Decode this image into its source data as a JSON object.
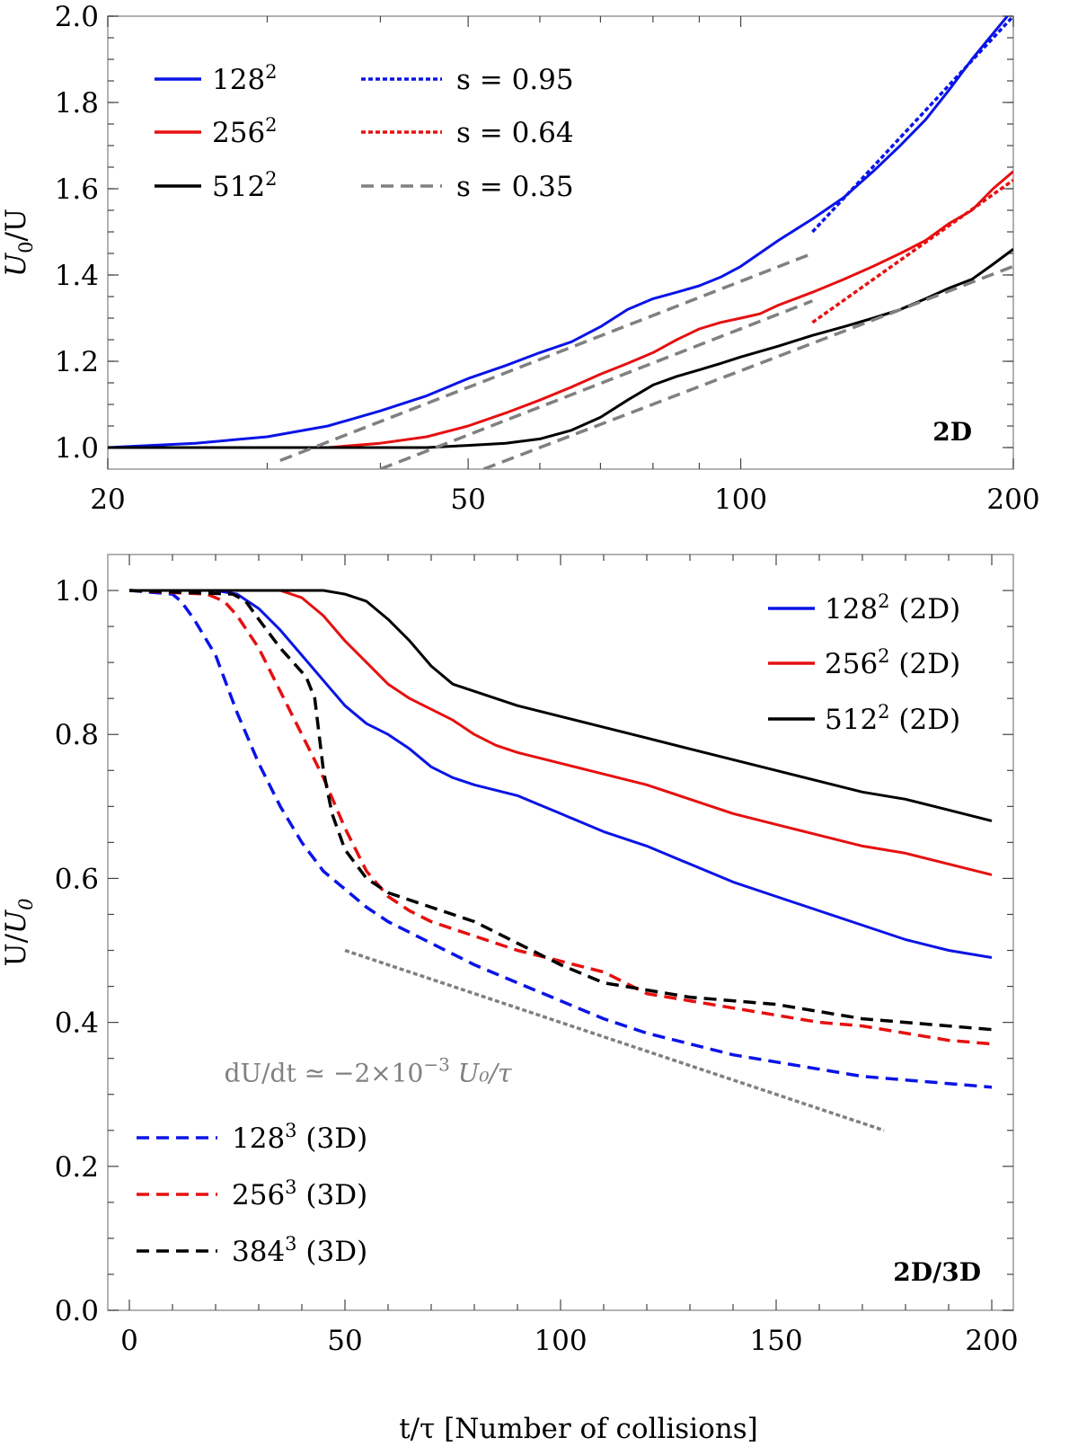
{
  "colors": {
    "blue": "#0a14e6",
    "red": "#e61010",
    "black": "#000000",
    "gray": "#808080",
    "frame": "#999999"
  },
  "chart_data": [
    {
      "type": "line",
      "panel_tag": "2D",
      "xscale": "log",
      "xlim": [
        20,
        200
      ],
      "ylim": [
        0.95,
        2.0
      ],
      "xticks": [
        20,
        50,
        100,
        200
      ],
      "xtick_labels": [
        "20",
        "50",
        "100",
        "200"
      ],
      "yticks": [
        1.0,
        1.2,
        1.4,
        1.6,
        1.8,
        2.0
      ],
      "ytick_labels": [
        "1.0",
        "1.2",
        "1.4",
        "1.6",
        "1.8",
        "2.0"
      ],
      "xlabel": "",
      "ylabel": {
        "base": "U",
        "sub": "0",
        "rest": "/U"
      },
      "grid": false,
      "legend": {
        "position": "top-left",
        "entries": [
          {
            "series": "128^2",
            "base": "128",
            "sup": "2"
          },
          {
            "series": "256^2",
            "base": "256",
            "sup": "2"
          },
          {
            "series": "512^2",
            "base": "512",
            "sup": "2"
          },
          {
            "series": "s = 0.95",
            "text": "s = 0.95"
          },
          {
            "series": "s = 0.64",
            "text": "s = 0.64"
          },
          {
            "series": "s = 0.35",
            "text": "s = 0.35"
          }
        ]
      },
      "series": [
        {
          "name": "128^2",
          "color": "#0a14e6",
          "style": "solid",
          "x": [
            20,
            25,
            30,
            35,
            40,
            45,
            50,
            55,
            60,
            65,
            70,
            75,
            80,
            85,
            90,
            95,
            100,
            110,
            120,
            130,
            140,
            150,
            160,
            170,
            180,
            190,
            197
          ],
          "y": [
            1.0,
            1.01,
            1.025,
            1.05,
            1.085,
            1.12,
            1.16,
            1.19,
            1.22,
            1.245,
            1.28,
            1.32,
            1.345,
            1.36,
            1.375,
            1.395,
            1.42,
            1.48,
            1.53,
            1.58,
            1.64,
            1.7,
            1.76,
            1.83,
            1.9,
            1.96,
            2.0
          ]
        },
        {
          "name": "256^2",
          "color": "#e61010",
          "style": "solid",
          "x": [
            20,
            30,
            35,
            40,
            45,
            50,
            55,
            60,
            65,
            70,
            75,
            80,
            85,
            90,
            95,
            100,
            105,
            110,
            120,
            130,
            140,
            150,
            160,
            170,
            180,
            190,
            200
          ],
          "y": [
            1.0,
            1.0,
            1.0,
            1.01,
            1.025,
            1.05,
            1.08,
            1.11,
            1.14,
            1.17,
            1.195,
            1.22,
            1.25,
            1.275,
            1.29,
            1.3,
            1.31,
            1.33,
            1.36,
            1.39,
            1.42,
            1.45,
            1.48,
            1.52,
            1.55,
            1.6,
            1.64
          ]
        },
        {
          "name": "512^2",
          "color": "#000000",
          "style": "solid",
          "x": [
            20,
            40,
            45,
            50,
            55,
            60,
            65,
            70,
            75,
            80,
            85,
            90,
            95,
            100,
            110,
            120,
            130,
            140,
            150,
            160,
            170,
            180,
            190,
            200
          ],
          "y": [
            1.0,
            1.0,
            1.0,
            1.005,
            1.01,
            1.02,
            1.04,
            1.07,
            1.11,
            1.145,
            1.165,
            1.18,
            1.195,
            1.21,
            1.235,
            1.26,
            1.28,
            1.3,
            1.32,
            1.345,
            1.37,
            1.39,
            1.425,
            1.46
          ]
        },
        {
          "name": "s = 0.95",
          "color": "#0a14e6",
          "style": "dotted",
          "x": [
            120,
            200
          ],
          "y": [
            1.5,
            2.0
          ]
        },
        {
          "name": "s = 0.64",
          "color": "#e61010",
          "style": "dotted",
          "x": [
            120,
            200
          ],
          "y": [
            1.29,
            1.62
          ]
        },
        {
          "name": "s = 0.35",
          "color": "#808080",
          "style": "dashed",
          "x": [
            31,
            120
          ],
          "y": [
            0.97,
            1.45
          ]
        },
        {
          "name": "s = 0.35",
          "color": "#808080",
          "style": "dashed",
          "x": [
            40,
            120
          ],
          "y": [
            0.95,
            1.34
          ]
        },
        {
          "name": "s = 0.35",
          "color": "#808080",
          "style": "dashed",
          "x": [
            52,
            200
          ],
          "y": [
            0.95,
            1.42
          ]
        }
      ]
    },
    {
      "type": "line",
      "panel_tag": "2D/3D",
      "xscale": "linear",
      "xlim": [
        -5,
        205
      ],
      "ylim": [
        0.0,
        1.05
      ],
      "xticks": [
        0,
        50,
        100,
        150,
        200
      ],
      "xtick_labels": [
        "0",
        "50",
        "100",
        "150",
        "200"
      ],
      "yticks": [
        0.0,
        0.2,
        0.4,
        0.6,
        0.8,
        1.0
      ],
      "ytick_labels": [
        "0.0",
        "0.2",
        "0.4",
        "0.6",
        "0.8",
        "1.0"
      ],
      "xlabel": "t/τ [Number of collisions]",
      "ylabel": {
        "base": "U/",
        "italic": "U",
        "sub": "0"
      },
      "grid": false,
      "annotation": {
        "text": "dU/dt ≃ −2×10",
        "sup": "−3",
        "tail": " U₀/τ",
        "x": 22,
        "y": 0.33
      },
      "legend_top": {
        "position": "top-right",
        "entries": [
          {
            "series": "128^2 (2D)",
            "base": "128",
            "sup": "2",
            "suffix": " (2D)"
          },
          {
            "series": "256^2 (2D)",
            "base": "256",
            "sup": "2",
            "suffix": " (2D)"
          },
          {
            "series": "512^2 (2D)",
            "base": "512",
            "sup": "2",
            "suffix": " (2D)"
          }
        ]
      },
      "legend_bottom": {
        "position": "bottom-left",
        "entries": [
          {
            "series": "128^3 (3D)",
            "base": "128",
            "sup": "3",
            "suffix": " (3D)"
          },
          {
            "series": "256^3 (3D)",
            "base": "256",
            "sup": "3",
            "suffix": " (3D)"
          },
          {
            "series": "384^3 (3D)",
            "base": "384",
            "sup": "3",
            "suffix": " (3D)"
          }
        ]
      },
      "series": [
        {
          "name": "128^2 (2D)",
          "color": "#0a14e6",
          "style": "solid",
          "x": [
            0,
            20,
            25,
            30,
            35,
            40,
            45,
            50,
            55,
            60,
            65,
            70,
            75,
            80,
            90,
            100,
            110,
            120,
            130,
            140,
            150,
            160,
            170,
            180,
            190,
            200
          ],
          "y": [
            1.0,
            1.0,
            0.995,
            0.975,
            0.945,
            0.91,
            0.875,
            0.84,
            0.815,
            0.8,
            0.78,
            0.755,
            0.74,
            0.73,
            0.715,
            0.69,
            0.665,
            0.645,
            0.62,
            0.595,
            0.575,
            0.555,
            0.535,
            0.515,
            0.5,
            0.49
          ]
        },
        {
          "name": "256^2 (2D)",
          "color": "#e61010",
          "style": "solid",
          "x": [
            0,
            35,
            40,
            45,
            50,
            55,
            60,
            65,
            70,
            75,
            80,
            85,
            90,
            100,
            110,
            120,
            130,
            140,
            150,
            160,
            170,
            180,
            190,
            200
          ],
          "y": [
            1.0,
            1.0,
            0.99,
            0.965,
            0.93,
            0.9,
            0.87,
            0.85,
            0.835,
            0.82,
            0.8,
            0.785,
            0.775,
            0.76,
            0.745,
            0.73,
            0.71,
            0.69,
            0.675,
            0.66,
            0.645,
            0.635,
            0.62,
            0.605
          ]
        },
        {
          "name": "512^2 (2D)",
          "color": "#000000",
          "style": "solid",
          "x": [
            0,
            40,
            45,
            50,
            55,
            60,
            65,
            70,
            75,
            80,
            85,
            90,
            100,
            110,
            120,
            130,
            140,
            150,
            160,
            170,
            180,
            190,
            200
          ],
          "y": [
            1.0,
            1.0,
            1.0,
            0.995,
            0.985,
            0.96,
            0.93,
            0.895,
            0.87,
            0.86,
            0.85,
            0.84,
            0.825,
            0.81,
            0.795,
            0.78,
            0.765,
            0.75,
            0.735,
            0.72,
            0.71,
            0.695,
            0.68
          ]
        },
        {
          "name": "128^3 (3D)",
          "color": "#0a14e6",
          "style": "dashed",
          "x": [
            0,
            10,
            12,
            15,
            20,
            25,
            30,
            35,
            40,
            45,
            50,
            55,
            60,
            70,
            80,
            90,
            100,
            110,
            120,
            130,
            140,
            150,
            160,
            170,
            180,
            190,
            200
          ],
          "y": [
            1.0,
            0.995,
            0.985,
            0.96,
            0.91,
            0.83,
            0.76,
            0.7,
            0.65,
            0.61,
            0.585,
            0.56,
            0.54,
            0.51,
            0.48,
            0.455,
            0.43,
            0.405,
            0.385,
            0.37,
            0.355,
            0.345,
            0.335,
            0.325,
            0.32,
            0.315,
            0.31
          ]
        },
        {
          "name": "256^3 (3D)",
          "color": "#e61010",
          "style": "dashed",
          "x": [
            0,
            18,
            22,
            25,
            30,
            35,
            40,
            45,
            50,
            55,
            60,
            65,
            70,
            80,
            90,
            100,
            110,
            120,
            130,
            140,
            150,
            160,
            170,
            180,
            190,
            200
          ],
          "y": [
            1.0,
            0.995,
            0.985,
            0.965,
            0.92,
            0.86,
            0.8,
            0.74,
            0.67,
            0.61,
            0.575,
            0.555,
            0.54,
            0.52,
            0.5,
            0.485,
            0.47,
            0.44,
            0.43,
            0.42,
            0.41,
            0.4,
            0.395,
            0.385,
            0.375,
            0.37
          ]
        },
        {
          "name": "384^3 (3D)",
          "color": "#000000",
          "style": "dashed",
          "x": [
            0,
            24,
            27,
            30,
            35,
            38,
            41,
            43,
            44,
            45,
            47,
            50,
            55,
            60,
            70,
            80,
            90,
            100,
            110,
            120,
            130,
            140,
            150,
            160,
            170,
            180,
            190,
            200
          ],
          "y": [
            1.0,
            0.995,
            0.985,
            0.96,
            0.92,
            0.9,
            0.88,
            0.85,
            0.8,
            0.75,
            0.69,
            0.64,
            0.6,
            0.58,
            0.56,
            0.54,
            0.51,
            0.48,
            0.455,
            0.445,
            0.435,
            0.43,
            0.425,
            0.415,
            0.405,
            0.4,
            0.395,
            0.39
          ]
        },
        {
          "name": "",
          "color": "#808080",
          "style": "dotted",
          "x": [
            50,
            175
          ],
          "y": [
            0.5,
            0.25
          ]
        }
      ]
    }
  ]
}
